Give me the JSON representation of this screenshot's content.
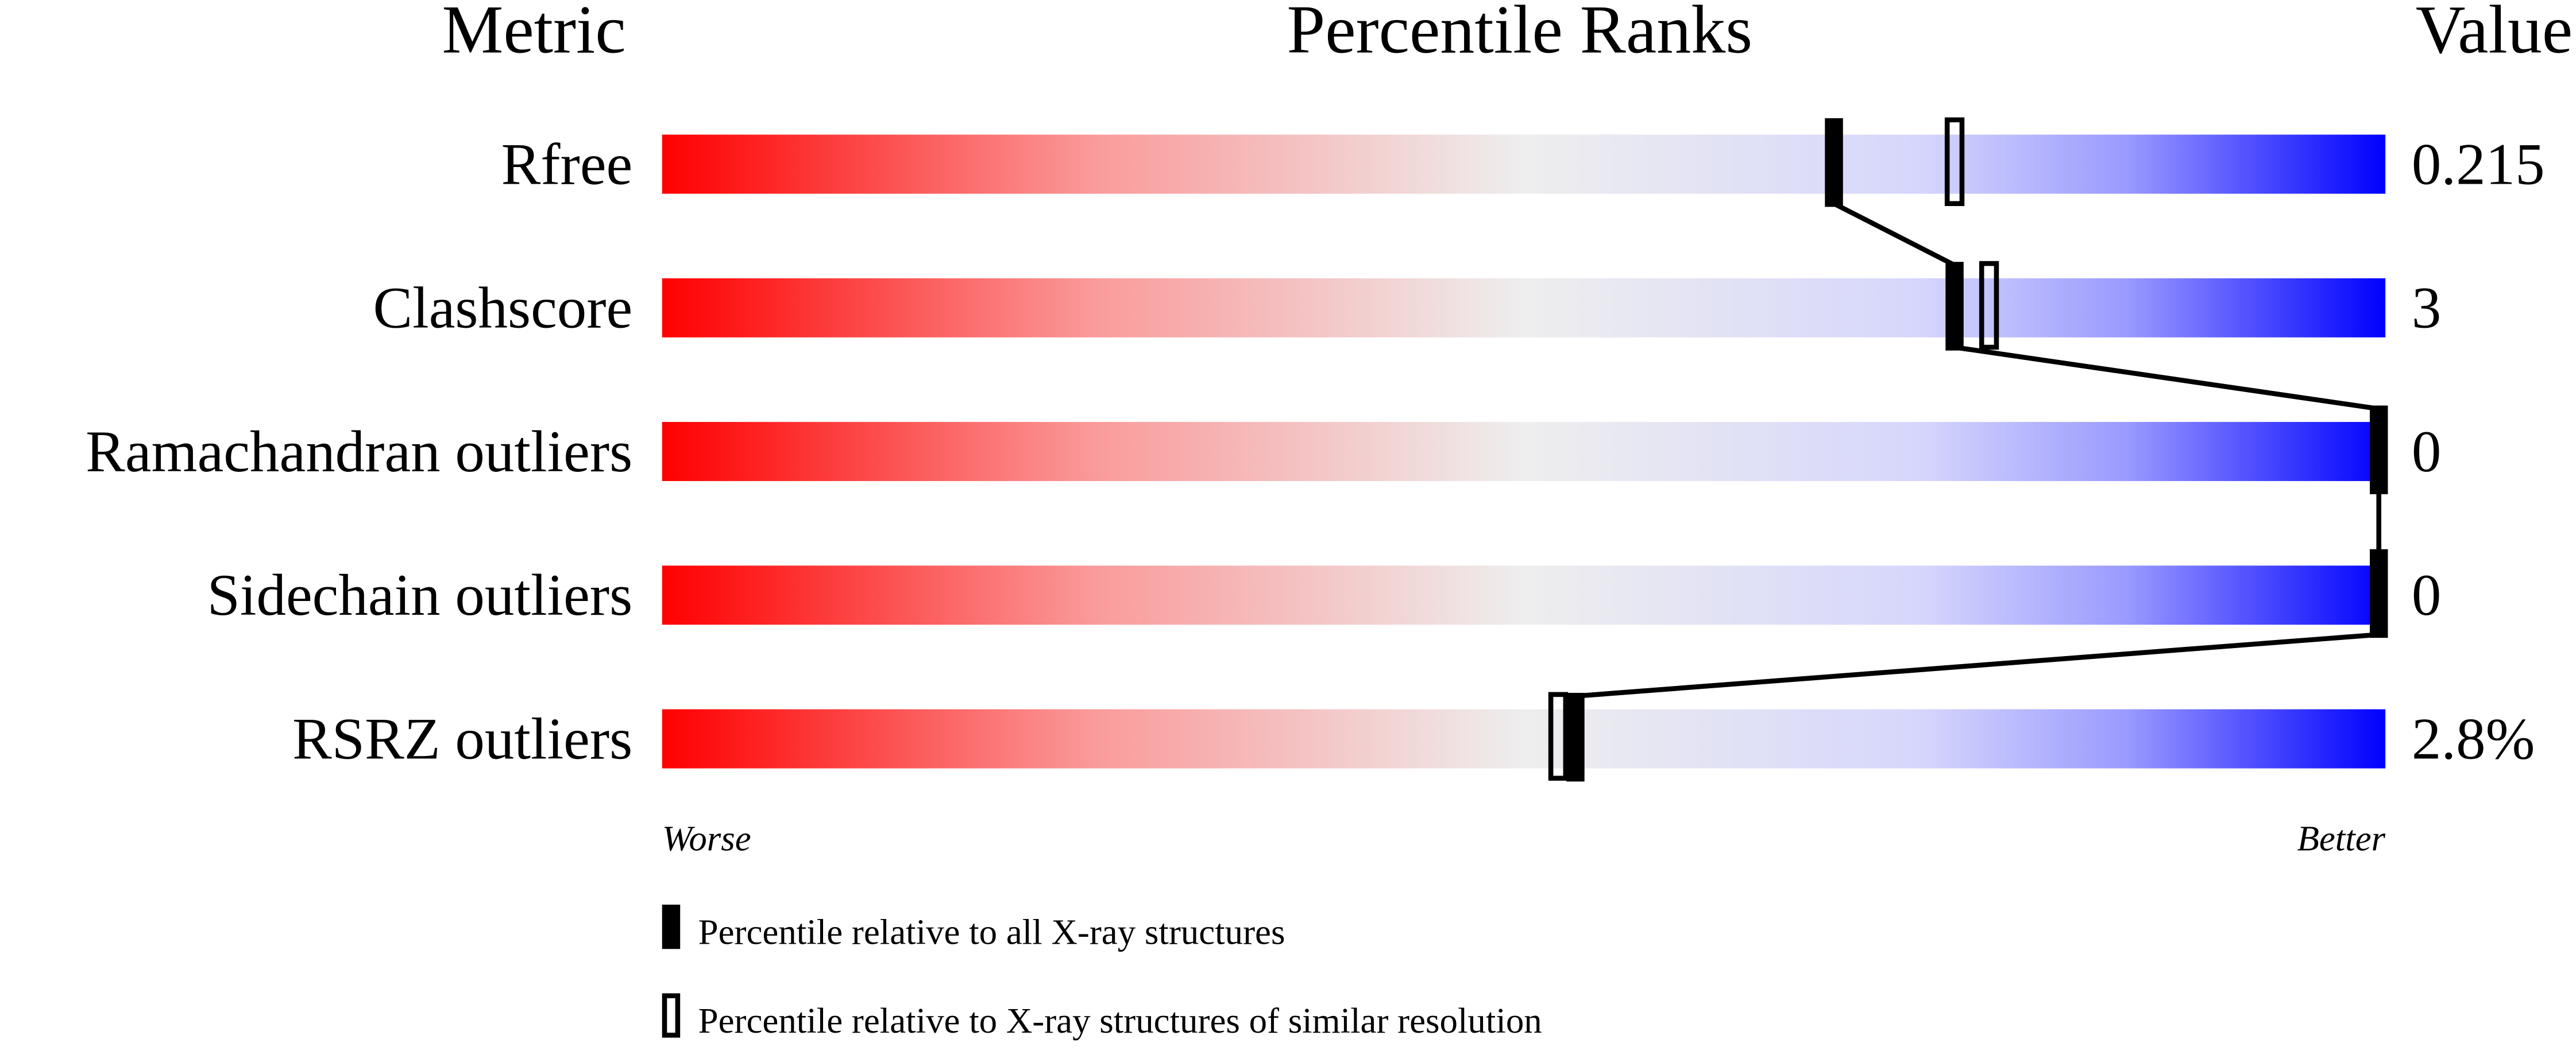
{
  "chart_data": {
    "type": "bar",
    "header": {
      "metric": "Metric",
      "ranks": "Percentile Ranks",
      "value": "Value"
    },
    "xlim": [
      0,
      100
    ],
    "axis_labels": {
      "left": "Worse",
      "right": "Better"
    },
    "colors": {
      "worse": "#ff0000",
      "middle": "#eeeeee",
      "better": "#0000ff",
      "marker": "#000000"
    },
    "metrics": [
      {
        "name": "Rfree",
        "value": "0.215",
        "percentile_all": 68,
        "percentile_similar": 75
      },
      {
        "name": "Clashscore",
        "value": "3",
        "percentile_all": 75,
        "percentile_similar": 77
      },
      {
        "name": "Ramachandran outliers",
        "value": "0",
        "percentile_all": 100,
        "percentile_similar": null
      },
      {
        "name": "Sidechain outliers",
        "value": "0",
        "percentile_all": 100,
        "percentile_similar": null
      },
      {
        "name": "RSRZ outliers",
        "value": "2.8%",
        "percentile_all": 53,
        "percentile_similar": 52
      }
    ],
    "legend": [
      {
        "marker": "filled",
        "label": "Percentile relative to all X-ray structures"
      },
      {
        "marker": "open",
        "label": "Percentile relative to X-ray structures of similar resolution"
      }
    ]
  }
}
